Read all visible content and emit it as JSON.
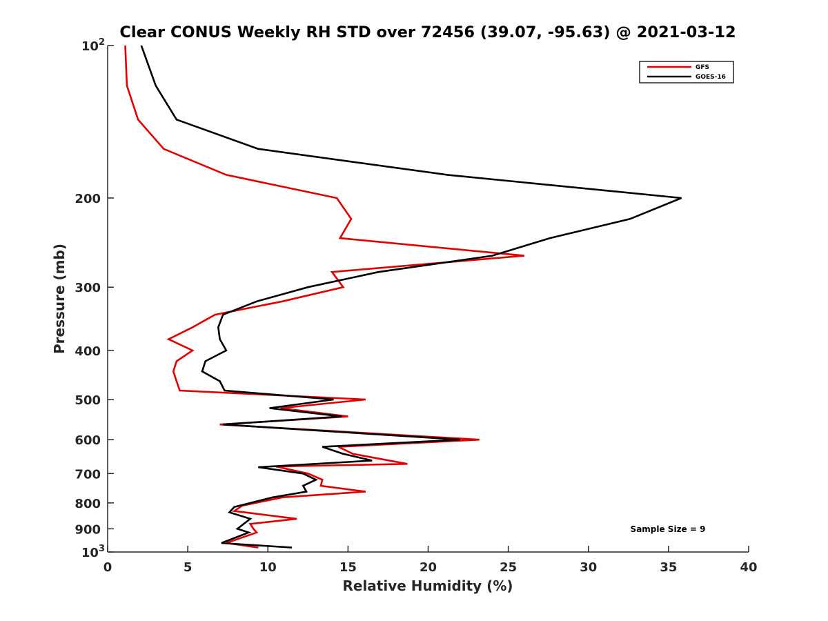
{
  "chart_data": {
    "type": "line",
    "title": "Clear CONUS Weekly RH STD over 72456 (39.07, -95.63) @ 2021-03-12",
    "xlabel": "Relative Humidity (%)",
    "ylabel": "Pressure (mb)",
    "xlim": [
      0,
      40
    ],
    "ylim": [
      100,
      1000
    ],
    "yscale": "log",
    "yreversed": true,
    "grid": false,
    "xticks": [
      0,
      5,
      10,
      15,
      20,
      25,
      30,
      35,
      40
    ],
    "xtick_labels": [
      "0",
      "5",
      "10",
      "15",
      "20",
      "25",
      "30",
      "35",
      "40"
    ],
    "yticks": [
      100,
      200,
      300,
      400,
      500,
      600,
      700,
      800,
      900,
      1000
    ],
    "ytick_labels": [
      {
        "base": "10",
        "exp": "2"
      },
      {
        "base": "200",
        "exp": ""
      },
      {
        "base": "300",
        "exp": ""
      },
      {
        "base": "400",
        "exp": ""
      },
      {
        "base": "500",
        "exp": ""
      },
      {
        "base": "600",
        "exp": ""
      },
      {
        "base": "700",
        "exp": ""
      },
      {
        "base": "800",
        "exp": ""
      },
      {
        "base": "900",
        "exp": ""
      },
      {
        "base": "10",
        "exp": "3"
      }
    ],
    "legend": {
      "position": "top-right",
      "entries": [
        "GFS",
        "GOES-16"
      ]
    },
    "annotation": "Sample Size = 9",
    "series": [
      {
        "name": "GFS",
        "color": "#e00000",
        "points": [
          [
            1.1,
            100
          ],
          [
            1.2,
            120
          ],
          [
            1.9,
            140
          ],
          [
            3.5,
            160
          ],
          [
            7.4,
            180
          ],
          [
            14.3,
            200
          ],
          [
            15.2,
            220
          ],
          [
            14.5,
            240
          ],
          [
            26.0,
            260
          ],
          [
            14.0,
            280
          ],
          [
            14.7,
            300
          ],
          [
            10.9,
            320
          ],
          [
            6.7,
            340
          ],
          [
            5.3,
            360
          ],
          [
            3.8,
            380
          ],
          [
            5.3,
            400
          ],
          [
            4.3,
            420
          ],
          [
            4.1,
            440
          ],
          [
            4.3,
            460
          ],
          [
            4.5,
            480
          ],
          [
            16.1,
            500
          ],
          [
            10.8,
            520
          ],
          [
            15.0,
            540
          ],
          [
            7.0,
            560
          ],
          [
            23.2,
            600
          ],
          [
            14.4,
            620
          ],
          [
            15.3,
            640
          ],
          [
            18.7,
            670
          ],
          [
            10.5,
            678
          ],
          [
            12.5,
            700
          ],
          [
            13.4,
            720
          ],
          [
            13.3,
            740
          ],
          [
            16.1,
            760
          ],
          [
            10.9,
            780
          ],
          [
            8.4,
            810
          ],
          [
            7.9,
            830
          ],
          [
            11.8,
            860
          ],
          [
            8.9,
            880
          ],
          [
            9.1,
            900
          ],
          [
            9.3,
            915
          ],
          [
            7.4,
            960
          ],
          [
            9.4,
            980
          ]
        ]
      },
      {
        "name": "GOES-16",
        "color": "#000000",
        "points": [
          [
            2.1,
            100
          ],
          [
            3.0,
            120
          ],
          [
            4.3,
            140
          ],
          [
            9.4,
            160
          ],
          [
            21.2,
            180
          ],
          [
            35.8,
            200
          ],
          [
            32.6,
            220
          ],
          [
            27.6,
            240
          ],
          [
            24.0,
            260
          ],
          [
            16.9,
            280
          ],
          [
            12.5,
            300
          ],
          [
            9.3,
            320
          ],
          [
            7.2,
            340
          ],
          [
            6.9,
            360
          ],
          [
            7.0,
            380
          ],
          [
            7.4,
            400
          ],
          [
            6.1,
            420
          ],
          [
            5.9,
            440
          ],
          [
            7.0,
            460
          ],
          [
            7.3,
            480
          ],
          [
            14.1,
            500
          ],
          [
            10.1,
            520
          ],
          [
            14.6,
            540
          ],
          [
            7.2,
            560
          ],
          [
            22.0,
            600
          ],
          [
            13.4,
            620
          ],
          [
            14.7,
            640
          ],
          [
            16.5,
            660
          ],
          [
            9.4,
            680
          ],
          [
            12.2,
            700
          ],
          [
            13.0,
            720
          ],
          [
            12.2,
            740
          ],
          [
            12.4,
            760
          ],
          [
            10.3,
            780
          ],
          [
            7.9,
            815
          ],
          [
            7.6,
            835
          ],
          [
            8.9,
            860
          ],
          [
            8.1,
            900
          ],
          [
            8.8,
            915
          ],
          [
            7.1,
            960
          ],
          [
            11.5,
            980
          ]
        ]
      }
    ]
  }
}
